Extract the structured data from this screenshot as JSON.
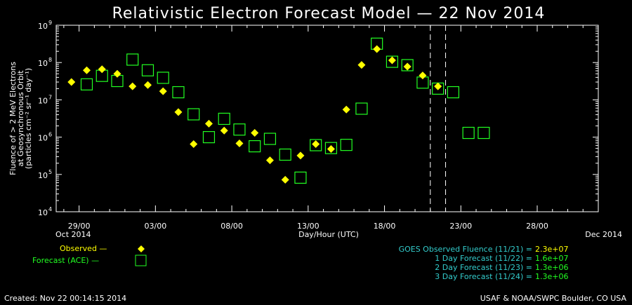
{
  "title": "Relativistic Electron Forecast Model — 22 Nov 2014",
  "colors": {
    "background": "#000000",
    "axes": "#ffffff",
    "observed": "#ffff00",
    "forecast": "#22ff22",
    "legend_observed_text": "#ffff00",
    "legend_forecast_text": "#22ff22",
    "summary_goes": "#ffff00",
    "summary_forecasts": "#22ff22",
    "summary_labels": "#33cccc"
  },
  "chart_data": {
    "type": "scatter",
    "ylabel_lines": [
      "Fluence of > 2 MeV Electrons",
      "at Geosynchronous Orbit",
      "(particles cm⁻² sr⁻¹ day⁻¹)"
    ],
    "xlabel": "Day/Hour (UTC)",
    "y_scale": "log",
    "ylim": [
      10000,
      1000000000
    ],
    "y_ticks": [
      {
        "exp": 4,
        "label": "10",
        "sup": "4"
      },
      {
        "exp": 5,
        "label": "10",
        "sup": "5"
      },
      {
        "exp": 6,
        "label": "10",
        "sup": "6"
      },
      {
        "exp": 7,
        "label": "10",
        "sup": "7"
      },
      {
        "exp": 8,
        "label": "10",
        "sup": "8"
      },
      {
        "exp": 9,
        "label": "10",
        "sup": "9"
      }
    ],
    "xlim_days": [
      -1.5,
      34.0
    ],
    "x_ticks": [
      {
        "day": 0,
        "label": "29/00"
      },
      {
        "day": 5,
        "label": "03/00"
      },
      {
        "day": 10,
        "label": "08/00"
      },
      {
        "day": 15,
        "label": "13/00"
      },
      {
        "day": 20,
        "label": "18/00"
      },
      {
        "day": 25,
        "label": "23/00"
      },
      {
        "day": 30,
        "label": "28/00"
      }
    ],
    "x_start_label": "Oct 2014",
    "x_end_label": "Dec 2014",
    "vertical_markers_days": [
      23,
      24
    ],
    "grid": false,
    "series": [
      {
        "name": "Observed",
        "marker": "diamond",
        "points": [
          {
            "day": -0.5,
            "value": 30000000
          },
          {
            "day": 0.5,
            "value": 62000000
          },
          {
            "day": 1.5,
            "value": 66000000
          },
          {
            "day": 2.5,
            "value": 50000000
          },
          {
            "day": 3.5,
            "value": 23000000
          },
          {
            "day": 4.5,
            "value": 25000000
          },
          {
            "day": 5.5,
            "value": 17000000
          },
          {
            "day": 6.5,
            "value": 4700000
          },
          {
            "day": 7.5,
            "value": 650000
          },
          {
            "day": 8.5,
            "value": 2300000
          },
          {
            "day": 9.5,
            "value": 1500000
          },
          {
            "day": 10.5,
            "value": 680000
          },
          {
            "day": 11.5,
            "value": 1300000
          },
          {
            "day": 12.5,
            "value": 240000
          },
          {
            "day": 13.5,
            "value": 72000
          },
          {
            "day": 14.5,
            "value": 320000
          },
          {
            "day": 15.5,
            "value": 650000
          },
          {
            "day": 16.5,
            "value": 480000
          },
          {
            "day": 17.5,
            "value": 5500000
          },
          {
            "day": 18.5,
            "value": 86000000
          },
          {
            "day": 19.5,
            "value": 230000000
          },
          {
            "day": 20.5,
            "value": 115000000
          },
          {
            "day": 21.5,
            "value": 78000000
          },
          {
            "day": 22.5,
            "value": 45000000
          },
          {
            "day": 23.5,
            "value": 23000000
          }
        ]
      },
      {
        "name": "Forecast (ACE)",
        "marker": "square",
        "points": [
          {
            "day": 0.5,
            "value": 26000000
          },
          {
            "day": 1.5,
            "value": 44000000
          },
          {
            "day": 2.5,
            "value": 32000000
          },
          {
            "day": 3.5,
            "value": 120000000
          },
          {
            "day": 4.5,
            "value": 62000000
          },
          {
            "day": 5.5,
            "value": 39000000
          },
          {
            "day": 6.5,
            "value": 16000000
          },
          {
            "day": 7.5,
            "value": 4100000
          },
          {
            "day": 8.5,
            "value": 1000000
          },
          {
            "day": 9.5,
            "value": 3100000
          },
          {
            "day": 10.5,
            "value": 1600000
          },
          {
            "day": 11.5,
            "value": 570000
          },
          {
            "day": 12.5,
            "value": 900000
          },
          {
            "day": 13.5,
            "value": 340000
          },
          {
            "day": 14.5,
            "value": 82000
          },
          {
            "day": 15.5,
            "value": 610000
          },
          {
            "day": 16.5,
            "value": 510000
          },
          {
            "day": 17.5,
            "value": 620000
          },
          {
            "day": 18.5,
            "value": 5800000
          },
          {
            "day": 19.5,
            "value": 320000000
          },
          {
            "day": 20.5,
            "value": 105000000
          },
          {
            "day": 21.5,
            "value": 85000000
          },
          {
            "day": 22.5,
            "value": 29000000
          },
          {
            "day": 23.5,
            "value": 20000000
          },
          {
            "day": 24.5,
            "value": 16000000
          },
          {
            "day": 25.5,
            "value": 1300000
          },
          {
            "day": 26.5,
            "value": 1300000
          }
        ]
      }
    ]
  },
  "legend": {
    "observed_label": "Observed —",
    "forecast_label": "Forecast (ACE) —"
  },
  "summary": {
    "lines": [
      {
        "label": "GOES Observed Fluence (11/21) =",
        "value": "2.3e+07"
      },
      {
        "label": "1 Day Forecast (11/22) =",
        "value": "1.6e+07"
      },
      {
        "label": "2 Day Forecast (11/23) =",
        "value": "1.3e+06"
      },
      {
        "label": "3 Day Forecast (11/24) =",
        "value": "1.3e+06"
      }
    ]
  },
  "footer": {
    "created": "Created: Nov 22 00:14:15 2014",
    "credit": "USAF & NOAA/SWPC Boulder, CO USA"
  }
}
